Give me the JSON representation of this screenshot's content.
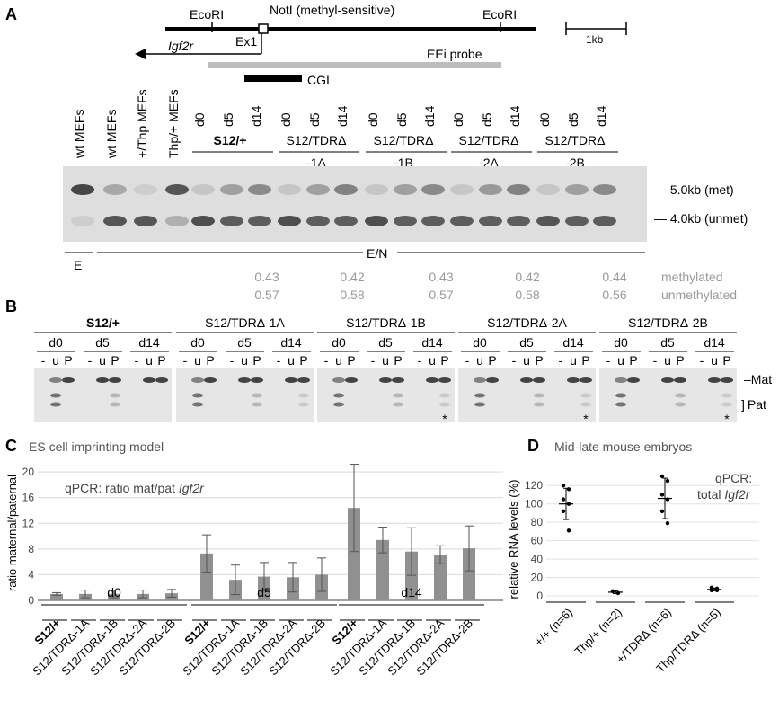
{
  "panels": {
    "A": {
      "label": "A",
      "map": {
        "ecori_left": "EcoRI",
        "noti": "NotI (methyl-sensitive)",
        "ecori_right": "EcoRI",
        "gene": "Igf2r",
        "exon": "Ex1",
        "probe": "EEi probe",
        "cgi": "CGI",
        "scale": "1kb"
      },
      "lanes_controls": [
        "wt MEFs",
        "wt MEFs",
        "+/Thp MEFs",
        "Thp/+ MEFs"
      ],
      "groups": [
        "S12/+",
        "S12/TDRΔ -1A",
        "S12/TDRΔ -1B",
        "S12/TDRΔ -2A",
        "S12/TDRΔ -2B"
      ],
      "group_line2": [
        "",
        "-1A",
        "-1B",
        "-2A",
        "-2B"
      ],
      "group_line1": [
        "S12/+",
        "S12/TDRΔ",
        "S12/TDRΔ",
        "S12/TDRΔ",
        "S12/TDRΔ"
      ],
      "days": [
        "d0",
        "d5",
        "d14"
      ],
      "band_labels": [
        "5.0kb (met)",
        "4.0kb (unmet)"
      ],
      "digest_e": "E",
      "digest_en": "E/N",
      "methylated_values": [
        "0.43",
        "0.42",
        "0.43",
        "0.42",
        "0.44"
      ],
      "unmethylated_values": [
        "0.57",
        "0.58",
        "0.57",
        "0.58",
        "0.56"
      ],
      "methylated_label": "methylated",
      "unmethylated_label": "unmethylated"
    },
    "B": {
      "label": "B",
      "groups": [
        "S12/+",
        "S12/TDRΔ-1A",
        "S12/TDRΔ-1B",
        "S12/TDRΔ-2A",
        "S12/TDRΔ-2B"
      ],
      "days": [
        "d0",
        "d5",
        "d14"
      ],
      "lane_codes": [
        "-",
        "u",
        "P"
      ],
      "band_labels": [
        "Mat",
        "Pat"
      ],
      "asterisk": "*"
    },
    "C": {
      "label": "C",
      "title": "ES cell imprinting model",
      "inner_title_prefix": "qPCR: ratio mat/pat ",
      "inner_title_gene": "Igf2r"
    },
    "D": {
      "label": "D",
      "title": "Mid-late mouse embryos",
      "inner_line1": "qPCR:",
      "inner_line2_prefix": "total ",
      "inner_line2_gene": "Igf2r"
    }
  },
  "chart_data": [
    {
      "panel": "C",
      "type": "bar",
      "ylabel": "ratio maternal/paternal",
      "ylim": [
        0,
        21
      ],
      "yticks": [
        0,
        4,
        8,
        12,
        16,
        20
      ],
      "grid": true,
      "time_groups": [
        "d0",
        "d5",
        "d14"
      ],
      "categories": [
        "S12/+",
        "S12/TDRΔ-1A",
        "S12/TDRΔ-1B",
        "S12/TDRΔ-2A",
        "S12/TDRΔ-2B"
      ],
      "series": [
        {
          "group": "d0",
          "values": [
            1.0,
            1.0,
            1.0,
            1.0,
            1.1
          ],
          "err": [
            0.2,
            0.6,
            0.6,
            0.6,
            0.6
          ]
        },
        {
          "group": "d5",
          "values": [
            7.3,
            3.2,
            3.7,
            3.6,
            4.0
          ],
          "err": [
            2.9,
            2.3,
            2.2,
            2.3,
            2.6
          ]
        },
        {
          "group": "d14",
          "values": [
            14.4,
            9.4,
            7.6,
            7.1,
            8.1
          ],
          "err": [
            6.8,
            2.0,
            3.7,
            1.4,
            3.5
          ]
        }
      ]
    },
    {
      "panel": "D",
      "type": "scatter",
      "ylabel": "relative RNA levels (%)",
      "ylim": [
        0,
        130
      ],
      "yticks": [
        0,
        20,
        40,
        60,
        80,
        100,
        120
      ],
      "categories": [
        "+/+ (n=6)",
        "Thp/+ (n=2)",
        "+/TDRΔ (n=6)",
        "Thp/TDRΔ (n=5)"
      ],
      "points": [
        [
          120,
          116,
          105,
          100,
          92,
          71
        ],
        [
          5,
          3
        ],
        [
          130,
          125,
          110,
          105,
          92,
          79
        ],
        [
          9,
          8,
          7,
          6,
          6
        ]
      ],
      "means": [
        100,
        4,
        106,
        7
      ],
      "err": [
        17,
        1.5,
        22,
        1.5
      ]
    }
  ]
}
